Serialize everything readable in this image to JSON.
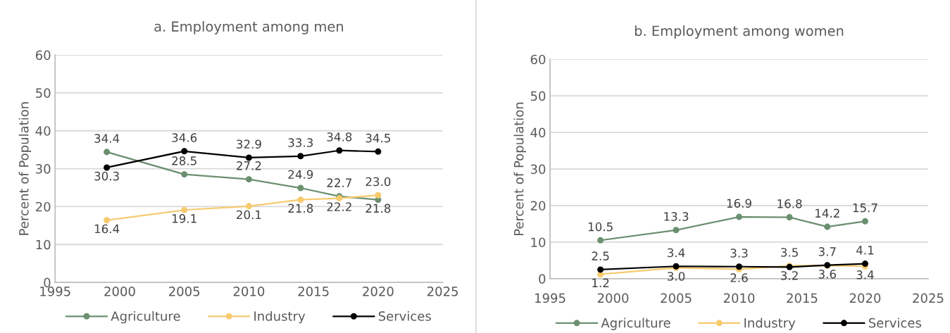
{
  "chart_data": [
    {
      "type": "line",
      "title": "a. Employment among men",
      "ylabel": "Percent of Population",
      "x": [
        1999,
        2005,
        2010,
        2014,
        2017,
        2020
      ],
      "series": [
        {
          "name": "Agriculture",
          "color": "#6b9070",
          "values": [
            34.4,
            28.5,
            27.2,
            24.9,
            22.7,
            21.8
          ],
          "value_labels": [
            "34.4",
            "28.5",
            "27.2",
            "24.9",
            "22.7",
            "21.8"
          ]
        },
        {
          "name": "Industry",
          "color": "#f7ca6e",
          "values": [
            16.4,
            19.1,
            20.1,
            21.8,
            22.2,
            23.0
          ],
          "value_labels": [
            "16.4",
            "19.1",
            "20.1",
            "21.8",
            "22.2",
            "23.0"
          ]
        },
        {
          "name": "Services",
          "color": "#000000",
          "values": [
            30.3,
            34.6,
            32.9,
            33.3,
            34.8,
            34.5
          ],
          "value_labels": [
            "30.3",
            "34.6",
            "32.9",
            "33.3",
            "34.8",
            "34.5"
          ]
        }
      ],
      "xlim": [
        1995,
        2025
      ],
      "xticks": [
        1995,
        2000,
        2005,
        2010,
        2015,
        2020,
        2025
      ],
      "ylim": [
        0,
        60
      ],
      "yticks": [
        0,
        10,
        20,
        30,
        40,
        50,
        60
      ],
      "grid": "y",
      "legend": "bottom",
      "marker": "circle",
      "line_style": "solid"
    },
    {
      "type": "line",
      "title": "b. Employment among women",
      "ylabel": "Percent of Population",
      "x": [
        1999,
        2005,
        2010,
        2014,
        2017,
        2020
      ],
      "series": [
        {
          "name": "Agriculture",
          "color": "#6b9070",
          "values": [
            10.5,
            13.3,
            16.9,
            16.8,
            14.2,
            15.7
          ],
          "value_labels": [
            "10.5",
            "13.3",
            "16.9",
            "16.8",
            "14.2",
            "15.7"
          ]
        },
        {
          "name": "Industry",
          "color": "#f7ca6e",
          "values": [
            1.2,
            3.0,
            2.6,
            3.5,
            3.6,
            3.4
          ],
          "value_labels": [
            "1.2",
            "3.0",
            "2.6",
            "3.5",
            "3.6",
            "3.4"
          ]
        },
        {
          "name": "Services",
          "color": "#000000",
          "values": [
            2.5,
            3.4,
            3.3,
            3.2,
            3.7,
            4.1
          ],
          "value_labels": [
            "2.5",
            "3.4",
            "3.3",
            "3.2",
            "3.7",
            "4.1"
          ]
        }
      ],
      "xlim": [
        1995,
        2025
      ],
      "xticks": [
        1995,
        2000,
        2005,
        2010,
        2015,
        2020,
        2025
      ],
      "ylim": [
        0,
        60
      ],
      "yticks": [
        0,
        10,
        20,
        30,
        40,
        50,
        60
      ],
      "grid": "y",
      "legend": "bottom",
      "marker": "circle",
      "line_style": "solid"
    }
  ]
}
